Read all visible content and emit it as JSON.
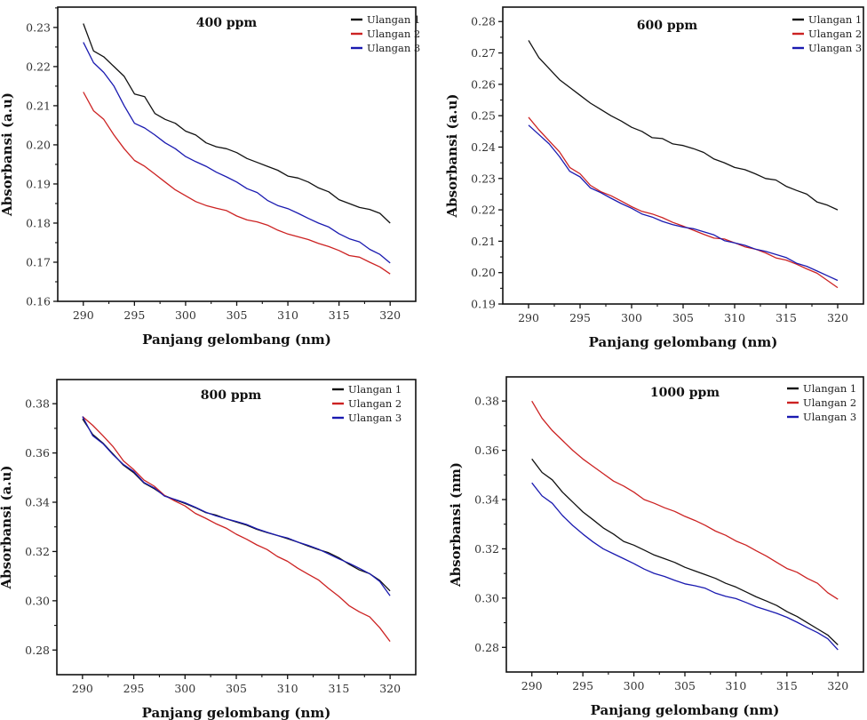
{
  "figure": {
    "panel_count": 4
  },
  "chart_data": [
    {
      "type": "line",
      "title": "400 ppm",
      "xlabel": "Panjang gelombang (nm)",
      "ylabel": "Absorbansi (a.u)",
      "xlim": [
        287.5,
        322.5
      ],
      "ylim": [
        0.16,
        0.2352
      ],
      "xticks": [
        290,
        295,
        300,
        305,
        310,
        315,
        320
      ],
      "xtick_labels": [
        "290",
        "295",
        "300",
        "305",
        "310",
        "315",
        "320"
      ],
      "yticks": [
        0.16,
        0.17,
        0.18,
        0.19,
        0.2,
        0.21,
        0.22,
        0.23
      ],
      "ytick_labels": [
        "0.16",
        "0.17",
        "0.18",
        "0.19",
        "0.20",
        "0.21",
        "0.22",
        "0.23"
      ],
      "grid": false,
      "legend_position": "top-right",
      "x": [
        290,
        291,
        292,
        293,
        294,
        295,
        296,
        297,
        298,
        299,
        300,
        301,
        302,
        303,
        304,
        305,
        306,
        307,
        308,
        309,
        310,
        311,
        312,
        313,
        314,
        315,
        316,
        317,
        318,
        319,
        320
      ],
      "series": [
        {
          "name": "Ulangan 1",
          "color": "#111111",
          "values": [
            0.231,
            0.224,
            0.2225,
            0.22,
            0.2175,
            0.213,
            0.2123,
            0.208,
            0.2065,
            0.2055,
            0.2035,
            0.2025,
            0.2005,
            0.1995,
            0.199,
            0.198,
            0.1965,
            0.1955,
            0.1945,
            0.1935,
            0.192,
            0.1915,
            0.1905,
            0.189,
            0.188,
            0.186,
            0.185,
            0.184,
            0.1835,
            0.1825,
            0.18
          ]
        },
        {
          "name": "Ulangan 2",
          "color": "#cc2222",
          "values": [
            0.2135,
            0.2087,
            0.2065,
            0.2025,
            0.199,
            0.196,
            0.1945,
            0.1925,
            0.1905,
            0.1885,
            0.187,
            0.1855,
            0.1845,
            0.1838,
            0.1832,
            0.1818,
            0.1808,
            0.1803,
            0.1795,
            0.1782,
            0.1772,
            0.1765,
            0.1758,
            0.1748,
            0.174,
            0.173,
            0.1717,
            0.1713,
            0.17,
            0.1688,
            0.167
          ]
        },
        {
          "name": "Ulangan 3",
          "color": "#1a1ab0",
          "values": [
            0.2262,
            0.221,
            0.2185,
            0.215,
            0.21,
            0.2055,
            0.2043,
            0.2025,
            0.2005,
            0.199,
            0.197,
            0.1957,
            0.1945,
            0.193,
            0.1918,
            0.1905,
            0.1888,
            0.1878,
            0.1858,
            0.1845,
            0.1837,
            0.1825,
            0.1812,
            0.18,
            0.179,
            0.1773,
            0.176,
            0.1752,
            0.1733,
            0.172,
            0.1698
          ]
        }
      ]
    },
    {
      "type": "line",
      "title": "600 ppm",
      "xlabel": "Panjang gelombang (nm)",
      "ylabel": "Absorbansi (a.u)",
      "xlim": [
        287.5,
        322.5
      ],
      "ylim": [
        0.19,
        0.2846
      ],
      "xticks": [
        290,
        295,
        300,
        305,
        310,
        315,
        320
      ],
      "xtick_labels": [
        "290",
        "295",
        "300",
        "305",
        "310",
        "315",
        "320"
      ],
      "yticks": [
        0.19,
        0.2,
        0.21,
        0.22,
        0.23,
        0.24,
        0.25,
        0.26,
        0.27,
        0.28
      ],
      "ytick_labels": [
        "0.19",
        "0.20",
        "0.21",
        "0.22",
        "0.23",
        "0.24",
        "0.25",
        "0.26",
        "0.27",
        "0.28"
      ],
      "grid": false,
      "legend_position": "top-right",
      "x": [
        290,
        291,
        292,
        293,
        294,
        295,
        296,
        297,
        298,
        299,
        300,
        301,
        302,
        303,
        304,
        305,
        306,
        307,
        308,
        309,
        310,
        311,
        312,
        313,
        314,
        315,
        316,
        317,
        318,
        319,
        320
      ],
      "series": [
        {
          "name": "Ulangan 1",
          "color": "#111111",
          "values": [
            0.274,
            0.2685,
            0.265,
            0.2615,
            0.259,
            0.2565,
            0.254,
            0.252,
            0.25,
            0.2483,
            0.2463,
            0.245,
            0.243,
            0.2427,
            0.241,
            0.2405,
            0.2395,
            0.2383,
            0.2362,
            0.235,
            0.2335,
            0.2328,
            0.2315,
            0.23,
            0.2295,
            0.2275,
            0.2262,
            0.225,
            0.2225,
            0.2215,
            0.22
          ]
        },
        {
          "name": "Ulangan 2",
          "color": "#cc2222",
          "values": [
            0.2495,
            0.2455,
            0.242,
            0.2385,
            0.2335,
            0.2315,
            0.2278,
            0.2258,
            0.2245,
            0.2228,
            0.221,
            0.2195,
            0.2187,
            0.2175,
            0.216,
            0.2148,
            0.2135,
            0.2122,
            0.211,
            0.2107,
            0.2095,
            0.2082,
            0.2075,
            0.2063,
            0.2047,
            0.204,
            0.2027,
            0.2012,
            0.1998,
            0.1975,
            0.1952
          ]
        },
        {
          "name": "Ulangan 3",
          "color": "#1a1ab0",
          "values": [
            0.247,
            0.244,
            0.241,
            0.237,
            0.2323,
            0.2305,
            0.227,
            0.2255,
            0.2237,
            0.222,
            0.2205,
            0.2187,
            0.2177,
            0.2163,
            0.2153,
            0.2145,
            0.214,
            0.213,
            0.212,
            0.2102,
            0.2095,
            0.2087,
            0.2075,
            0.2068,
            0.2058,
            0.2048,
            0.203,
            0.202,
            0.2005,
            0.199,
            0.1975
          ]
        }
      ]
    },
    {
      "type": "line",
      "title": "800 ppm",
      "xlabel": "Panjang gelombang (nm)",
      "ylabel": "Absorbansi (a.u)",
      "xlim": [
        287.5,
        322.5
      ],
      "ylim": [
        0.27,
        0.3898
      ],
      "xticks": [
        290,
        295,
        300,
        305,
        310,
        315,
        320
      ],
      "xtick_labels": [
        "290",
        "295",
        "300",
        "305",
        "310",
        "315",
        "320"
      ],
      "yticks": [
        0.28,
        0.3,
        0.32,
        0.34,
        0.36,
        0.38
      ],
      "ytick_labels": [
        "0.28",
        "0.30",
        "0.32",
        "0.34",
        "0.36",
        "0.38"
      ],
      "grid": false,
      "legend_position": "top-right",
      "x": [
        290,
        291,
        292,
        293,
        294,
        295,
        296,
        297,
        298,
        299,
        300,
        301,
        302,
        303,
        304,
        305,
        306,
        307,
        308,
        309,
        310,
        311,
        312,
        313,
        314,
        315,
        316,
        317,
        318,
        319,
        320
      ],
      "series": [
        {
          "name": "Ulangan 1",
          "color": "#111111",
          "values": [
            0.3738,
            0.3675,
            0.364,
            0.3595,
            0.355,
            0.352,
            0.3478,
            0.3455,
            0.3427,
            0.341,
            0.3395,
            0.3378,
            0.3358,
            0.3348,
            0.3333,
            0.332,
            0.3307,
            0.329,
            0.3277,
            0.3265,
            0.3252,
            0.3238,
            0.3222,
            0.3208,
            0.3195,
            0.3175,
            0.3148,
            0.3125,
            0.311,
            0.3082,
            0.304
          ]
        },
        {
          "name": "Ulangan 2",
          "color": "#cc2222",
          "values": [
            0.3748,
            0.3712,
            0.367,
            0.3625,
            0.3568,
            0.3532,
            0.349,
            0.3465,
            0.3428,
            0.3405,
            0.3385,
            0.3355,
            0.3335,
            0.3313,
            0.3295,
            0.327,
            0.325,
            0.3227,
            0.3208,
            0.318,
            0.316,
            0.3132,
            0.3108,
            0.3085,
            0.305,
            0.3018,
            0.298,
            0.2955,
            0.2935,
            0.289,
            0.2835
          ]
        },
        {
          "name": "Ulangan 3",
          "color": "#1a1ab0",
          "values": [
            0.3748,
            0.367,
            0.3638,
            0.3592,
            0.3553,
            0.3525,
            0.348,
            0.3458,
            0.3425,
            0.3412,
            0.3398,
            0.338,
            0.336,
            0.3345,
            0.3333,
            0.3322,
            0.331,
            0.3292,
            0.3278,
            0.3265,
            0.3255,
            0.3238,
            0.3225,
            0.321,
            0.319,
            0.317,
            0.3152,
            0.3132,
            0.311,
            0.3078,
            0.302
          ]
        }
      ]
    },
    {
      "type": "line",
      "title": "1000 ppm",
      "xlabel": "Panjang gelombang (nm)",
      "ylabel": "Absorbansi (nm)",
      "xlim": [
        287.5,
        322.5
      ],
      "ylim": [
        0.27,
        0.3898
      ],
      "xticks": [
        290,
        295,
        300,
        305,
        310,
        315,
        320
      ],
      "xtick_labels": [
        "290",
        "295",
        "300",
        "305",
        "310",
        "315",
        "320"
      ],
      "yticks": [
        0.28,
        0.3,
        0.32,
        0.34,
        0.36,
        0.38
      ],
      "ytick_labels": [
        "0.28",
        "0.30",
        "0.32",
        "0.34",
        "0.36",
        "0.38"
      ],
      "grid": false,
      "legend_position": "top-right",
      "x": [
        290,
        291,
        292,
        293,
        294,
        295,
        296,
        297,
        298,
        299,
        300,
        301,
        302,
        303,
        304,
        305,
        306,
        307,
        308,
        309,
        310,
        311,
        312,
        313,
        314,
        315,
        316,
        317,
        318,
        319,
        320
      ],
      "series": [
        {
          "name": "Ulangan 1",
          "color": "#111111",
          "values": [
            0.3565,
            0.351,
            0.348,
            0.343,
            0.339,
            0.335,
            0.3318,
            0.3285,
            0.326,
            0.323,
            0.3215,
            0.3195,
            0.3175,
            0.316,
            0.3145,
            0.3125,
            0.311,
            0.3095,
            0.308,
            0.306,
            0.3045,
            0.3025,
            0.3005,
            0.2988,
            0.297,
            0.2945,
            0.2925,
            0.29,
            0.2875,
            0.285,
            0.281
          ]
        },
        {
          "name": "Ulangan 2",
          "color": "#cc2222",
          "values": [
            0.38,
            0.373,
            0.368,
            0.364,
            0.36,
            0.3565,
            0.3535,
            0.3505,
            0.3475,
            0.3455,
            0.343,
            0.34,
            0.3385,
            0.3367,
            0.3352,
            0.3332,
            0.3315,
            0.3295,
            0.3272,
            0.3255,
            0.3232,
            0.3215,
            0.3192,
            0.317,
            0.3145,
            0.312,
            0.3105,
            0.308,
            0.306,
            0.3022,
            0.2995
          ]
        },
        {
          "name": "Ulangan 3",
          "color": "#1a1ab0",
          "values": [
            0.3468,
            0.3415,
            0.3385,
            0.3335,
            0.3295,
            0.326,
            0.3228,
            0.32,
            0.318,
            0.316,
            0.314,
            0.3118,
            0.31,
            0.3088,
            0.3072,
            0.3058,
            0.305,
            0.304,
            0.302,
            0.3007,
            0.2998,
            0.2982,
            0.2965,
            0.2952,
            0.2938,
            0.2922,
            0.2902,
            0.288,
            0.286,
            0.2835,
            0.279
          ]
        }
      ]
    }
  ]
}
